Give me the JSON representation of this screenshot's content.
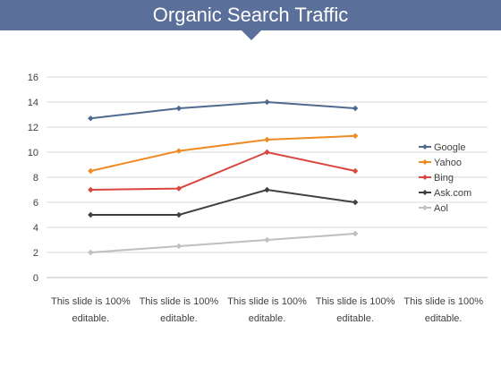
{
  "header": {
    "title": "Organic Search Traffic",
    "color": "#5a6f99"
  },
  "chart_data": {
    "type": "line",
    "title": "",
    "xlabel": "",
    "ylabel": "",
    "categories": [
      [
        "This slide is 100%",
        "editable."
      ],
      [
        "This slide is 100%",
        "editable."
      ],
      [
        "This slide is 100%",
        "editable."
      ],
      [
        "This slide is 100%",
        "editable."
      ],
      [
        "This slide is 100%",
        "editable."
      ]
    ],
    "ylim": [
      0,
      16
    ],
    "yticks": [
      0,
      2,
      4,
      6,
      8,
      10,
      12,
      14,
      16
    ],
    "grid": true,
    "legend_position": "right",
    "series": [
      {
        "name": "Google",
        "color": "#4f6a8f",
        "values": [
          12.7,
          13.5,
          14.0,
          13.5,
          null
        ]
      },
      {
        "name": "Yahoo",
        "color": "#f08a24",
        "values": [
          8.5,
          10.1,
          11.0,
          11.3,
          null
        ]
      },
      {
        "name": "Bing",
        "color": "#d9473f",
        "values": [
          7.0,
          7.1,
          10.0,
          8.5,
          null
        ]
      },
      {
        "name": "Ask.com",
        "color": "#404040",
        "values": [
          5.0,
          5.0,
          7.0,
          6.0,
          null
        ]
      },
      {
        "name": "Aol",
        "color": "#bfbfbf",
        "values": [
          2.0,
          2.5,
          3.0,
          3.5,
          null
        ]
      }
    ]
  }
}
